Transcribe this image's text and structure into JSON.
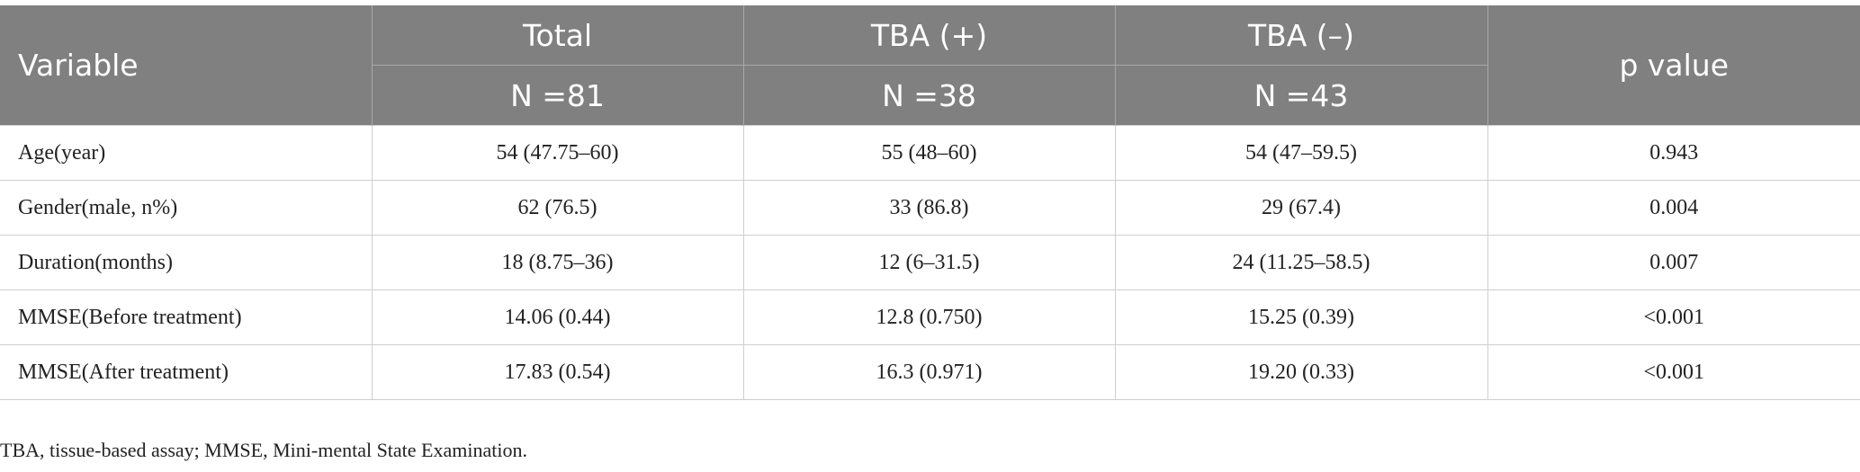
{
  "table": {
    "header": {
      "variable": "Variable",
      "groups": [
        "Total",
        "TBA (+)",
        "TBA (–)"
      ],
      "counts": [
        "N =81",
        "N =38",
        "N =43"
      ],
      "p": "p value"
    },
    "rows": [
      [
        "Age(year)",
        "54 (47.75–60)",
        "55 (48–60)",
        "54 (47–59.5)",
        "0.943"
      ],
      [
        "Gender(male, n%)",
        "62 (76.5)",
        "33 (86.8)",
        "29 (67.4)",
        "0.004"
      ],
      [
        "Duration(months)",
        "18 (8.75–36)",
        "12 (6–31.5)",
        "24 (11.25–58.5)",
        "0.007"
      ],
      [
        "MMSE(Before treatment)",
        "14.06 (0.44)",
        "12.8 (0.750)",
        "15.25 (0.39)",
        "<0.001"
      ],
      [
        "MMSE(After treatment)",
        "17.83 (0.54)",
        "16.3 (0.971)",
        "19.20 (0.33)",
        "<0.001"
      ]
    ]
  },
  "footnote": "TBA, tissue-based assay; MMSE, Mini-mental State Examination."
}
